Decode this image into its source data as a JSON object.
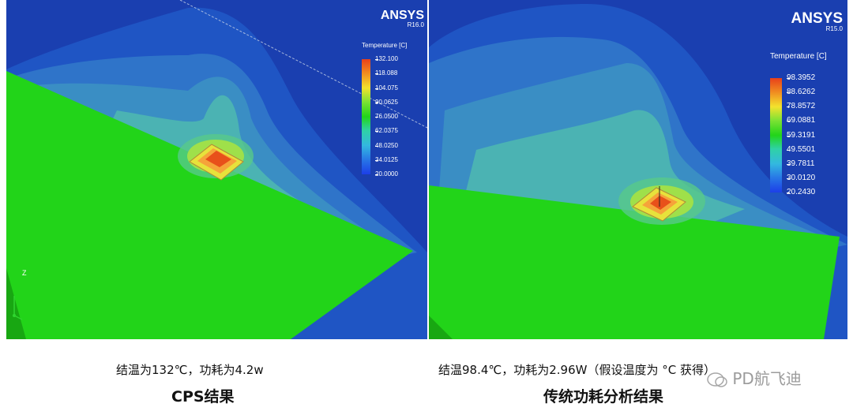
{
  "left_panel": {
    "brand": "ANSYS",
    "version": "R16.0",
    "legend_title": "Temperature [C]",
    "legend_ticks": [
      "132.100",
      "118.088",
      "104.075",
      "90.0625",
      "76.0500",
      "62.0375",
      "48.0250",
      "34.0125",
      "20.0000"
    ],
    "axis_label": "Z",
    "caption_main": "结温为132℃，功耗为4.2w",
    "caption_sub": "CPS结果"
  },
  "right_panel": {
    "brand": "ANSYS",
    "version": "R15.0",
    "legend_title": "Temperature [C]",
    "legend_ticks": [
      "98.3952",
      "88.6262",
      "78.8572",
      "69.0881",
      "59.3191",
      "49.5501",
      "39.7811",
      "30.0120",
      "20.2430"
    ],
    "caption_main": "结温98.4℃，功耗为2.96W（假设温度为 °C 获得）",
    "caption_sub": "传统功耗分析结果"
  },
  "watermark": "PD航飞迪",
  "colors": {
    "background_blue": "#1a3fb0",
    "plate_green": "#22d419",
    "hot_orange": "#e8501a"
  }
}
